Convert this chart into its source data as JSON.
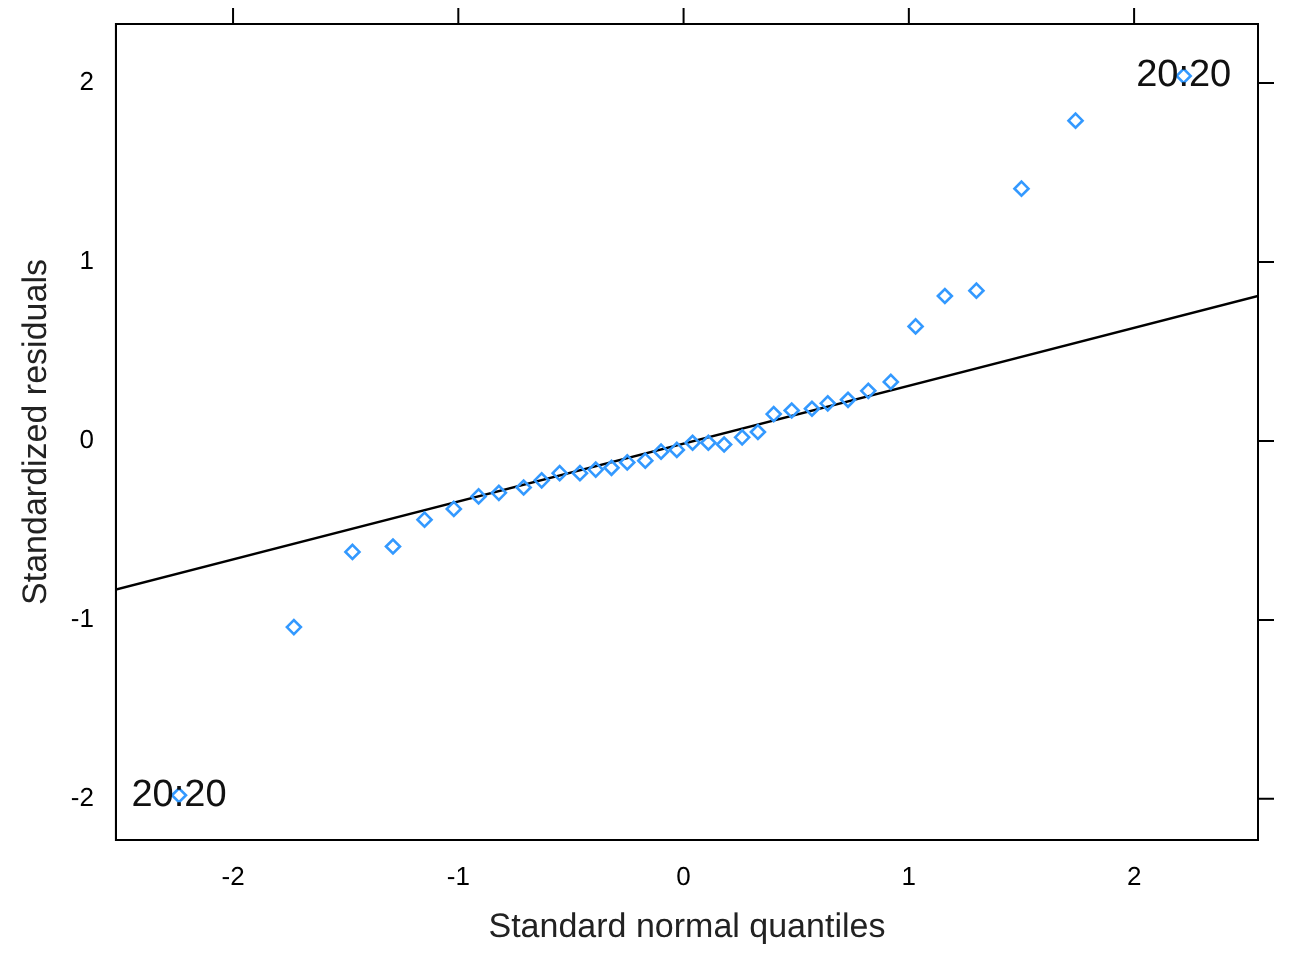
{
  "chart_data": {
    "type": "scatter",
    "xlabel": "Standard normal quantiles",
    "ylabel": "Standardized residuals",
    "xlim": [
      -2.52,
      2.55
    ],
    "ylim": [
      -2.23,
      2.33
    ],
    "xticks": [
      -2,
      -1,
      0,
      1,
      2
    ],
    "yticks": [
      -2,
      -1,
      0,
      1,
      2
    ],
    "grid": false,
    "legend": false,
    "marker": "diamond",
    "series": [
      {
        "type": "scatter",
        "color": "#3399ff",
        "x": [
          -2.24,
          -1.73,
          -1.47,
          -1.29,
          -1.15,
          -1.02,
          -0.91,
          -0.82,
          -0.71,
          -0.63,
          -0.55,
          -0.46,
          -0.39,
          -0.32,
          -0.25,
          -0.17,
          -0.1,
          -0.03,
          0.04,
          0.11,
          0.18,
          0.26,
          0.33,
          0.4,
          0.48,
          0.57,
          0.64,
          0.73,
          0.82,
          0.92,
          1.03,
          1.16,
          1.3,
          1.5,
          1.74,
          2.22
        ],
        "values": [
          -1.98,
          -1.04,
          -0.62,
          -0.59,
          -0.44,
          -0.38,
          -0.31,
          -0.29,
          -0.26,
          -0.22,
          -0.18,
          -0.18,
          -0.16,
          -0.15,
          -0.12,
          -0.11,
          -0.06,
          -0.05,
          -0.01,
          -0.01,
          -0.02,
          0.02,
          0.05,
          0.15,
          0.17,
          0.18,
          0.21,
          0.23,
          0.28,
          0.33,
          0.64,
          0.81,
          0.84,
          1.41,
          1.79,
          2.04
        ]
      },
      {
        "type": "line",
        "color": "#000000",
        "marker": "none",
        "x": [
          -2.52,
          2.55
        ],
        "values": [
          -0.83,
          0.81
        ]
      }
    ],
    "annotations": [
      {
        "text": "20:20",
        "x": -2.24,
        "y": -1.98
      },
      {
        "text": "20:20",
        "x": 2.22,
        "y": 2.04
      }
    ]
  }
}
